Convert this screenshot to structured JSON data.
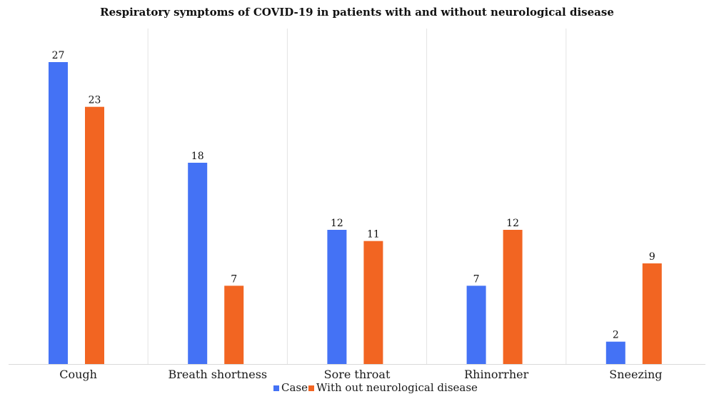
{
  "chart_data": {
    "type": "bar",
    "title": "Respiratory symptoms of COVID-19 in patients with and without neurological disease",
    "xlabel": "",
    "ylabel": "",
    "categories": [
      "Cough",
      "Breath shortness",
      "Sore throat",
      "Rhinorrher",
      "Sneezing"
    ],
    "series": [
      {
        "name": "Case",
        "values": [
          27,
          18,
          12,
          7,
          2
        ],
        "color": "#4472f5"
      },
      {
        "name": "With out neurological disease",
        "values": [
          23,
          7,
          11,
          12,
          9
        ],
        "color": "#f26522"
      }
    ],
    "ylim": [
      0,
      27
    ],
    "grid": "vertical category separators",
    "legend_position": "bottom-center",
    "data_labels": true
  }
}
